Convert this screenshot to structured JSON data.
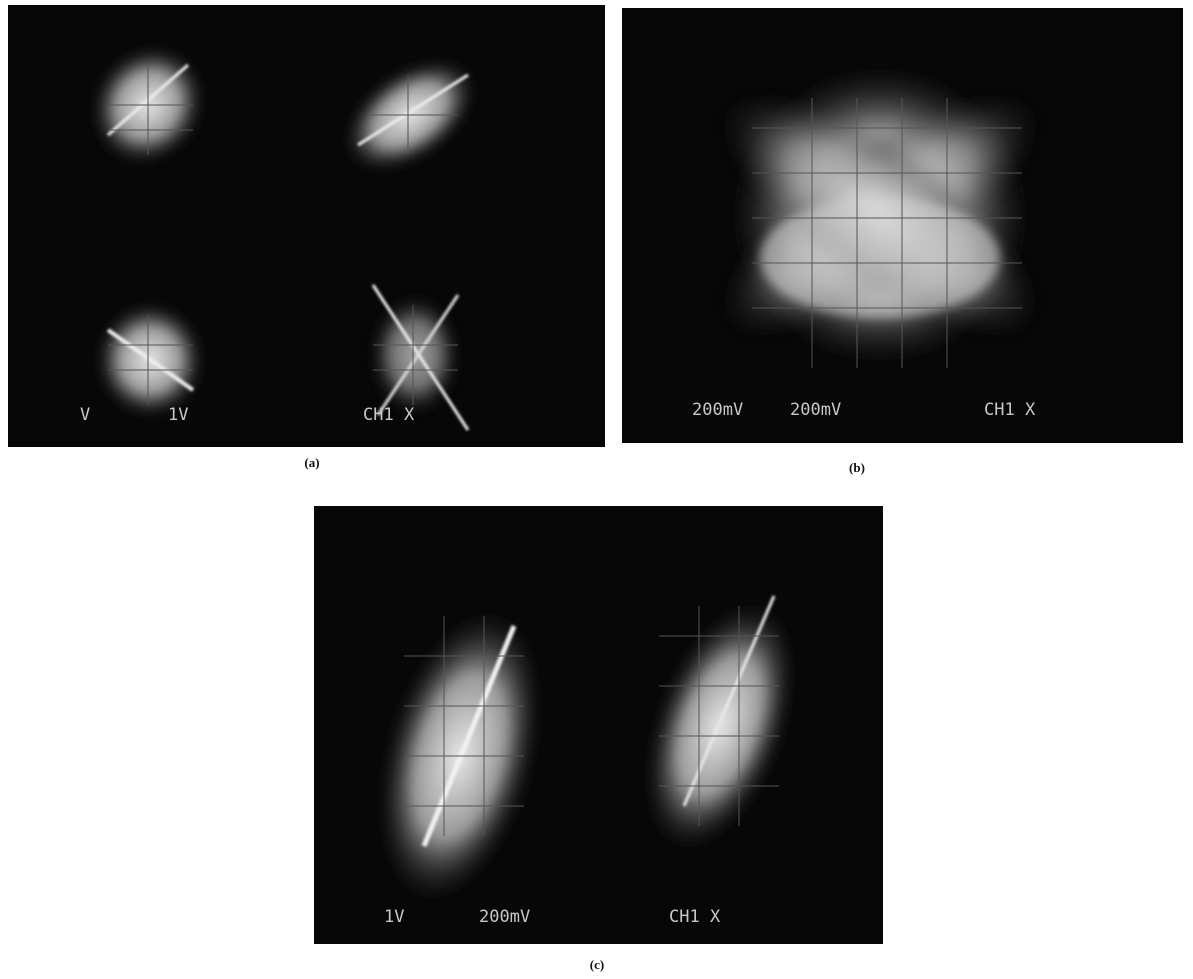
{
  "panels": [
    {
      "label": "(a)",
      "readouts": [
        "V",
        "1V",
        "CH1 X"
      ]
    },
    {
      "label": "(b)",
      "readouts": [
        "200mV",
        "200mV",
        "CH1 X"
      ]
    },
    {
      "label": "(c)",
      "readouts": [
        "1V",
        "200mV",
        "CH1 X"
      ]
    }
  ]
}
